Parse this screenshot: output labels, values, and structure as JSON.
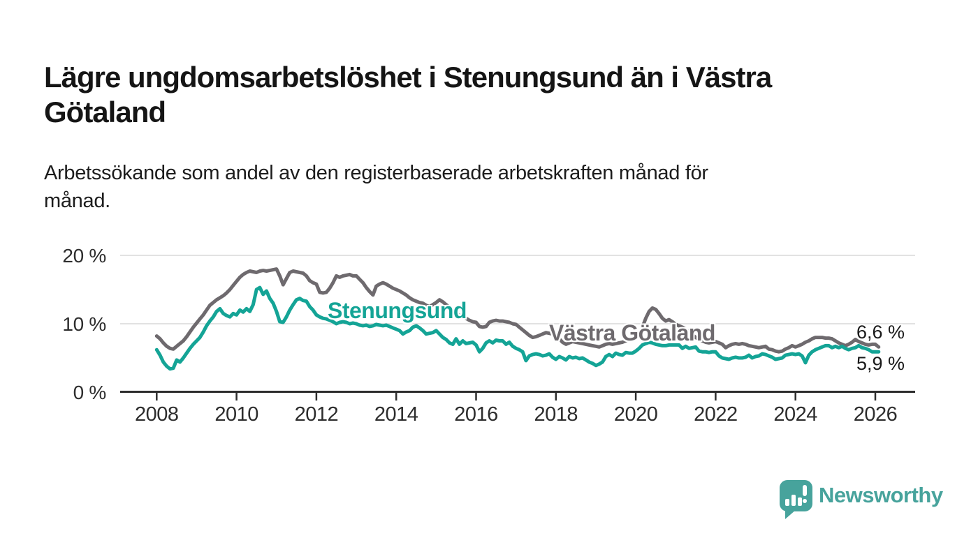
{
  "page": {
    "title_line1": "Lägre ungdomsarbetslöshet i Stenungsund än i Västra",
    "title_line2": "Götaland",
    "subtitle_line1": "Arbetssökande som andel av den registerbaserade arbetskraften månad för",
    "subtitle_line2": "månad.",
    "background": "#ffffff"
  },
  "footer": {
    "brand_name": "Newsworthy"
  },
  "colors": {
    "stenungsund": "#14a496",
    "vastra_gotaland": "#6e6a6e",
    "grid": "#e2e2e2",
    "axis": "#2d2d2d",
    "text": "#151515",
    "brand": "#47a39c"
  },
  "chart_data": {
    "type": "line",
    "title": "Lägre ungdomsarbetslöshet i Stenungsund än i Västra Götaland",
    "subtitle": "Arbetssökande som andel av den registerbaserade arbetskraften månad för månad.",
    "unit": "%",
    "x_start": "2008-01",
    "x_end": "2026-02",
    "points_per_year": 12,
    "ylim": [
      0,
      21
    ],
    "grid": "horizontal",
    "legend": "inline-labels",
    "y_ticks": [
      "20 %",
      "10 %",
      "0 %"
    ],
    "y_tick_values": [
      20,
      10,
      0
    ],
    "x_ticks": [
      "2008",
      "2010",
      "2012",
      "2014",
      "2016",
      "2018",
      "2020",
      "2022",
      "2024",
      "2026"
    ],
    "series": [
      {
        "name": "Västra Götaland",
        "color": "#6e6a6e",
        "end_label": "6,6 %",
        "end_value": 6.6,
        "values": [
          8.2,
          7.8,
          7.2,
          6.7,
          6.4,
          6.3,
          6.7,
          7.1,
          7.5,
          8.1,
          8.8,
          9.5,
          10.1,
          10.7,
          11.3,
          12.0,
          12.7,
          13.1,
          13.5,
          13.8,
          14.1,
          14.5,
          15.0,
          15.6,
          16.2,
          16.8,
          17.2,
          17.5,
          17.7,
          17.6,
          17.5,
          17.7,
          17.8,
          17.7,
          17.8,
          17.9,
          18.0,
          17.0,
          15.7,
          16.6,
          17.5,
          17.7,
          17.6,
          17.5,
          17.4,
          17.0,
          16.3,
          16.0,
          15.8,
          14.6,
          14.5,
          14.6,
          15.2,
          16.0,
          17.0,
          16.8,
          17.0,
          17.1,
          17.2,
          17.0,
          17.0,
          16.5,
          16.0,
          15.3,
          14.7,
          14.2,
          15.5,
          15.8,
          16.0,
          15.8,
          15.5,
          15.2,
          15.0,
          14.8,
          14.5,
          14.2,
          13.8,
          13.5,
          13.3,
          13.1,
          13.0,
          12.7,
          12.5,
          12.8,
          13.1,
          13.5,
          13.2,
          12.8,
          12.4,
          12.0,
          11.6,
          11.2,
          11.0,
          10.8,
          10.5,
          10.3,
          10.2,
          9.6,
          9.5,
          9.6,
          10.2,
          10.4,
          10.5,
          10.4,
          10.4,
          10.3,
          10.2,
          10.0,
          9.9,
          9.5,
          9.1,
          8.7,
          8.3,
          8.0,
          8.1,
          8.3,
          8.5,
          8.7,
          8.6,
          8.5,
          8.2,
          7.8,
          7.3,
          7.0,
          7.2,
          7.4,
          7.3,
          7.2,
          7.1,
          7.0,
          6.9,
          6.8,
          6.7,
          6.6,
          6.8,
          7.0,
          7.1,
          7.0,
          7.1,
          7.2,
          7.3,
          7.5,
          7.7,
          7.9,
          8.1,
          8.3,
          9.5,
          10.8,
          11.8,
          12.3,
          12.1,
          11.5,
          10.8,
          10.4,
          10.6,
          10.3,
          9.9,
          9.7,
          9.5,
          9.2,
          8.8,
          8.4,
          8.0,
          7.7,
          7.5,
          7.3,
          7.2,
          7.3,
          7.4,
          7.2,
          7.0,
          6.5,
          6.8,
          7.0,
          7.1,
          7.0,
          7.1,
          7.0,
          6.8,
          6.7,
          6.6,
          6.5,
          6.6,
          6.7,
          6.3,
          6.2,
          6.0,
          5.9,
          6.0,
          6.3,
          6.5,
          6.8,
          6.6,
          6.8,
          7.0,
          7.3,
          7.5,
          7.8,
          8.0,
          8.0,
          8.0,
          7.9,
          7.9,
          7.8,
          7.5,
          7.2,
          7.0,
          6.8,
          7.0,
          7.3,
          7.7,
          7.4,
          7.2,
          7.0,
          6.9,
          7.0,
          7.0,
          6.6
        ]
      },
      {
        "name": "Stenungsund",
        "color": "#14a496",
        "end_label": "5,9 %",
        "end_value": 5.9,
        "values": [
          6.2,
          5.4,
          4.4,
          3.8,
          3.4,
          3.5,
          4.7,
          4.4,
          5.0,
          5.7,
          6.4,
          7.0,
          7.5,
          8.0,
          8.8,
          9.7,
          10.4,
          11.0,
          11.8,
          12.2,
          11.5,
          11.2,
          11.0,
          11.5,
          11.3,
          12.0,
          11.7,
          12.2,
          11.8,
          12.8,
          15.0,
          15.3,
          14.3,
          14.8,
          13.7,
          13.0,
          11.8,
          10.3,
          10.2,
          11.0,
          12.0,
          12.8,
          13.5,
          13.7,
          13.4,
          13.3,
          12.5,
          12.0,
          11.3,
          11.0,
          10.8,
          10.7,
          10.5,
          10.3,
          10.0,
          10.2,
          10.3,
          10.2,
          10.0,
          10.1,
          10.0,
          9.8,
          9.7,
          9.8,
          9.6,
          9.7,
          9.9,
          9.8,
          9.7,
          9.8,
          9.6,
          9.4,
          9.2,
          9.0,
          8.5,
          8.8,
          9.0,
          9.5,
          9.7,
          9.4,
          9.0,
          8.5,
          8.6,
          8.7,
          9.0,
          8.5,
          8.0,
          7.7,
          7.2,
          7.0,
          7.8,
          7.0,
          7.5,
          7.1,
          7.2,
          7.3,
          6.9,
          5.9,
          6.4,
          7.2,
          7.5,
          7.2,
          7.6,
          7.5,
          7.5,
          7.0,
          7.3,
          6.7,
          6.4,
          6.2,
          5.9,
          4.6,
          5.3,
          5.5,
          5.6,
          5.5,
          5.3,
          5.4,
          5.6,
          5.1,
          4.8,
          5.2,
          5.0,
          4.7,
          5.2,
          5.0,
          5.1,
          4.9,
          5.0,
          4.7,
          4.4,
          4.2,
          3.9,
          4.1,
          4.4,
          5.2,
          5.5,
          5.2,
          5.7,
          5.5,
          5.4,
          5.8,
          5.7,
          5.7,
          6.0,
          6.4,
          6.9,
          7.1,
          7.3,
          7.2,
          7.0,
          6.9,
          6.8,
          6.8,
          6.9,
          6.9,
          6.9,
          6.9,
          6.4,
          6.7,
          6.4,
          6.5,
          6.6,
          6.0,
          5.9,
          5.9,
          5.8,
          5.9,
          5.9,
          5.3,
          5.0,
          4.9,
          4.8,
          5.0,
          5.1,
          5.0,
          5.0,
          5.1,
          5.4,
          5.0,
          5.2,
          5.3,
          5.6,
          5.5,
          5.3,
          5.1,
          4.8,
          4.9,
          5.0,
          5.4,
          5.5,
          5.6,
          5.5,
          5.6,
          5.3,
          4.3,
          5.4,
          5.9,
          6.2,
          6.4,
          6.6,
          6.8,
          6.8,
          6.5,
          6.7,
          6.5,
          6.7,
          6.4,
          6.2,
          6.4,
          6.5,
          6.8,
          6.5,
          6.4,
          6.2,
          5.9,
          5.9,
          5.9
        ]
      }
    ]
  }
}
